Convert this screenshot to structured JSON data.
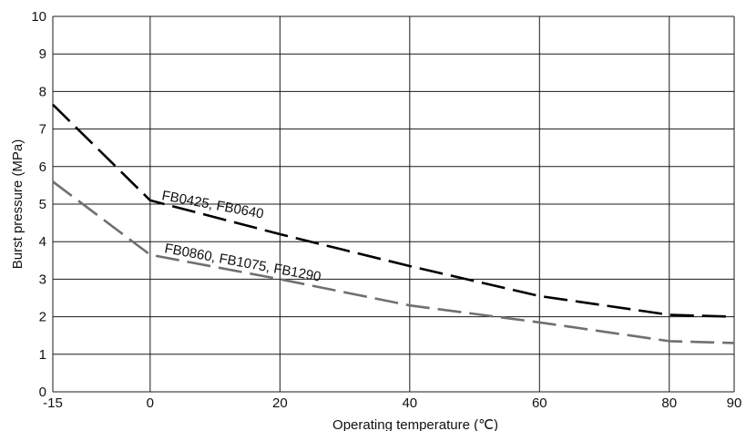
{
  "chart_data": {
    "type": "line",
    "title": "",
    "xlabel": "Operating temperature (℃)",
    "ylabel": "Burst pressure (MPa)",
    "xlim": [
      -15,
      90
    ],
    "ylim": [
      0,
      10
    ],
    "xticks": [
      -15,
      0,
      20,
      40,
      60,
      80,
      90
    ],
    "yticks": [
      0,
      1,
      2,
      3,
      4,
      5,
      6,
      7,
      8,
      9,
      10
    ],
    "grid": true,
    "legend": "none",
    "series": [
      {
        "name": "FB0425, FB0640",
        "color": "#000000",
        "dash": "long-dash",
        "points": [
          [
            -15,
            7.65
          ],
          [
            0,
            5.1
          ],
          [
            20,
            4.2
          ],
          [
            40,
            3.35
          ],
          [
            60,
            2.55
          ],
          [
            80,
            2.05
          ],
          [
            90,
            2.0
          ]
        ]
      },
      {
        "name": "FB0860, FB1075, FB1290",
        "color": "#707070",
        "dash": "long-dash",
        "points": [
          [
            -15,
            5.6
          ],
          [
            0,
            3.65
          ],
          [
            20,
            3.0
          ],
          [
            40,
            2.3
          ],
          [
            60,
            1.85
          ],
          [
            80,
            1.35
          ],
          [
            90,
            1.3
          ]
        ]
      }
    ]
  }
}
